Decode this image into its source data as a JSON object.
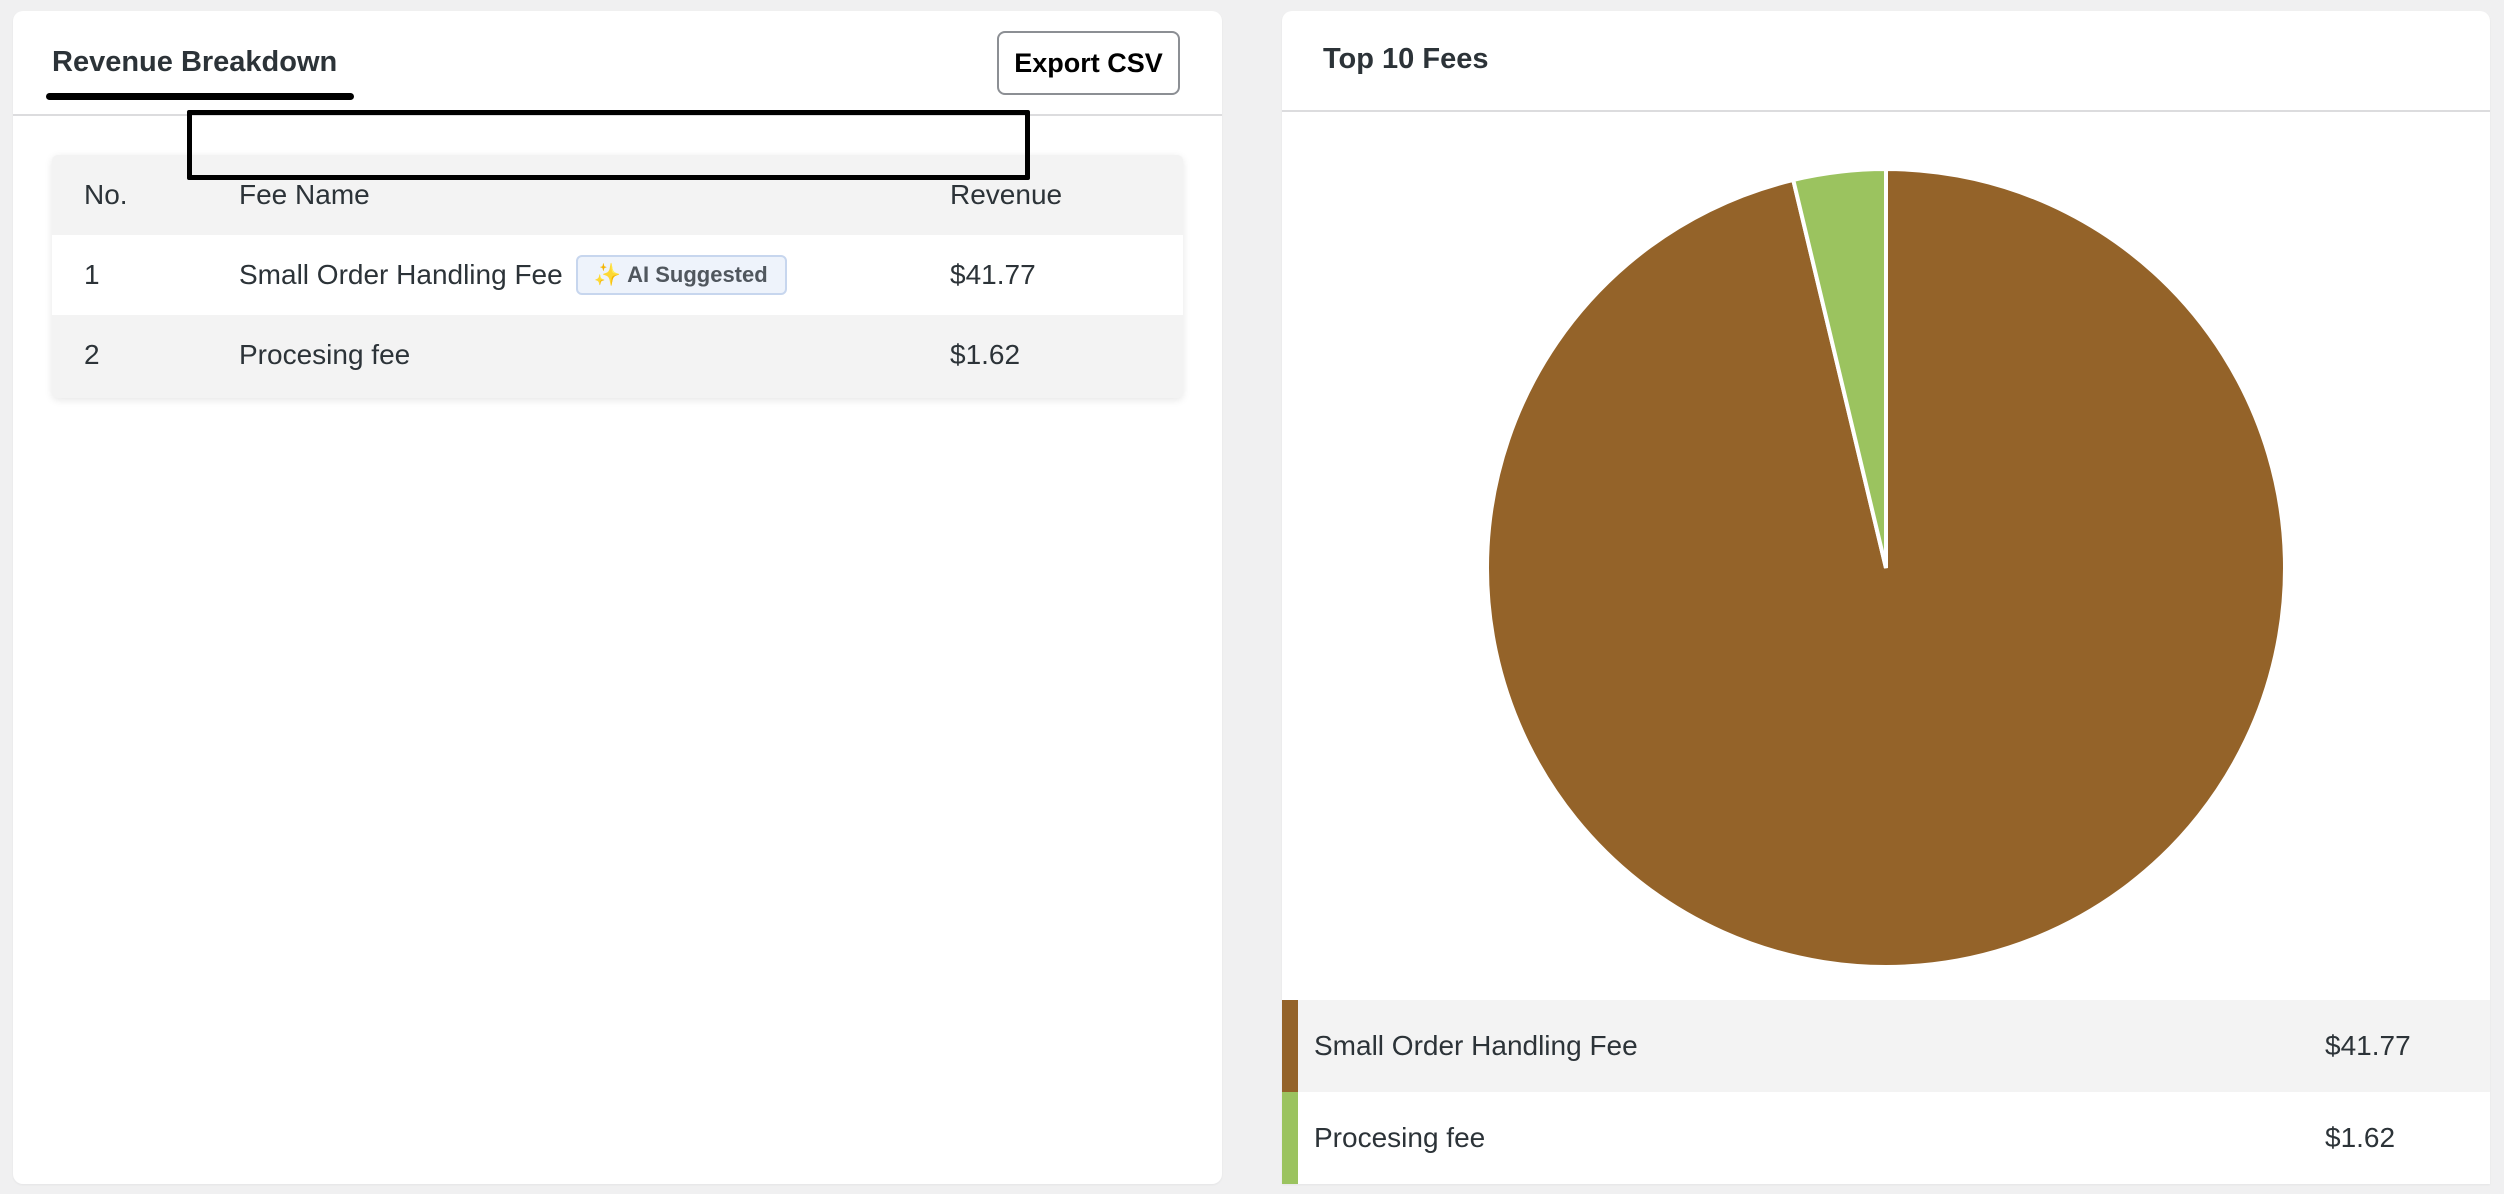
{
  "breakdown": {
    "tab_title": "Revenue Breakdown",
    "export_label": "Export CSV",
    "columns": {
      "no": "No.",
      "name": "Fee Name",
      "revenue": "Revenue"
    },
    "rows": [
      {
        "no": "1",
        "name": "Small Order Handling Fee",
        "badge": "AI Suggested",
        "badge_icon": "✨",
        "revenue": "$41.77"
      },
      {
        "no": "2",
        "name": "Procesing fee",
        "revenue": "$1.62"
      }
    ]
  },
  "top_fees": {
    "title": "Top 10 Fees",
    "legend": [
      {
        "name": "Small Order Handling Fee",
        "value": "$41.77",
        "color": "#946329"
      },
      {
        "name": "Procesing fee",
        "value": "$1.62",
        "color": "#9bc35f"
      }
    ]
  },
  "chart_data": {
    "type": "pie",
    "categories": [
      "Small Order Handling Fee",
      "Procesing fee"
    ],
    "values": [
      41.77,
      1.62
    ],
    "colors": [
      "#946329",
      "#9bc35f"
    ],
    "title": "Top 10 Fees"
  }
}
